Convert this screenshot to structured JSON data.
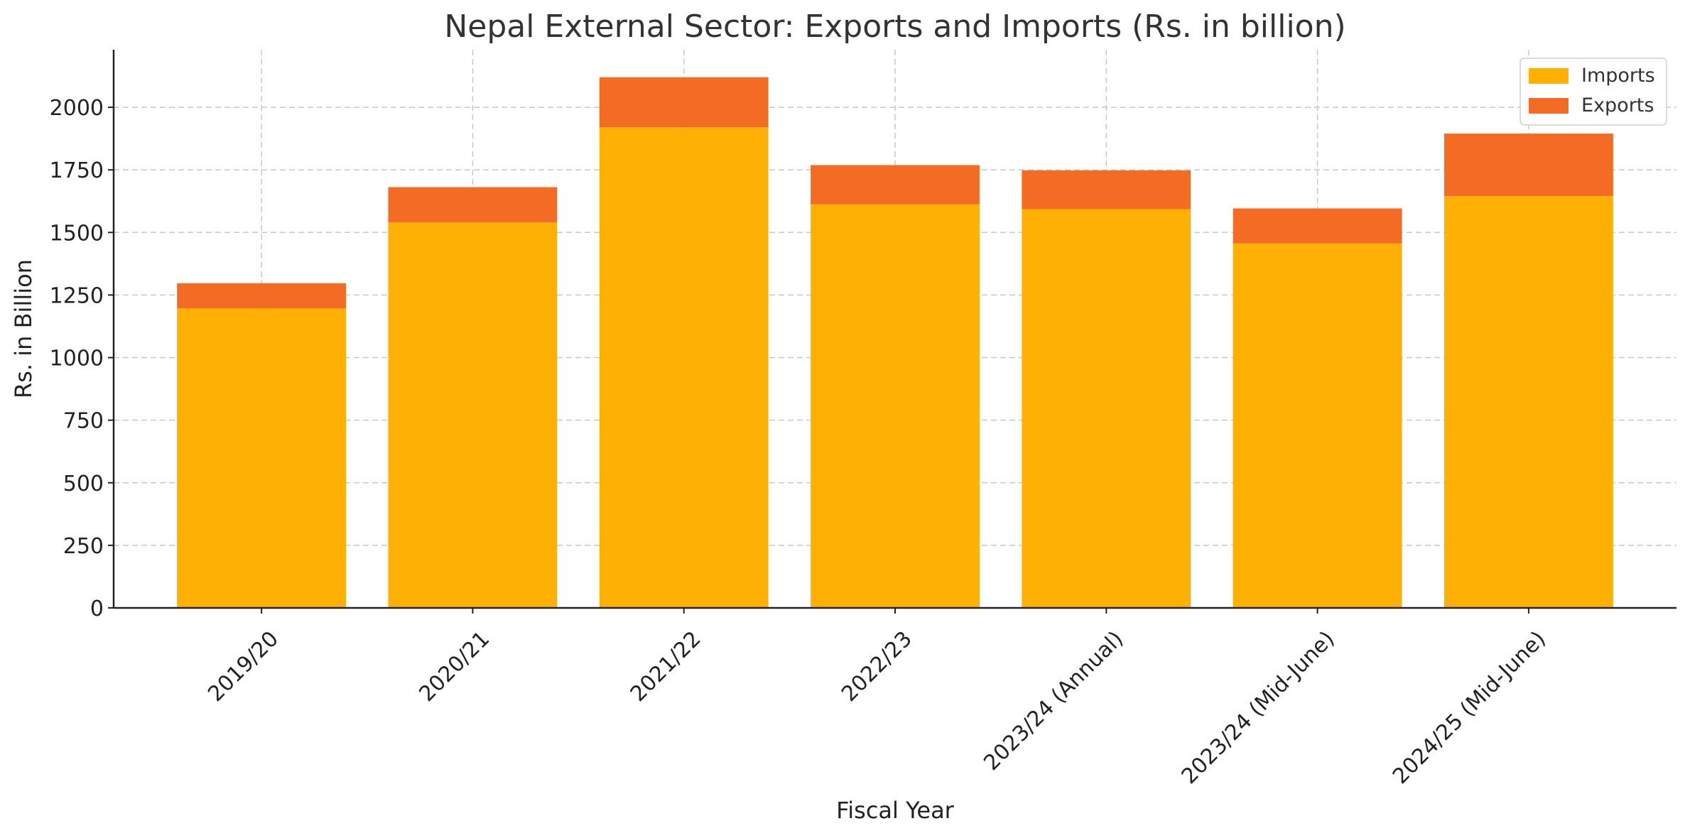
{
  "chart_data": {
    "type": "bar",
    "stacked": true,
    "title": "Nepal External Sector: Exports and Imports (Rs. in billion)",
    "xlabel": "Fiscal Year",
    "ylabel": "Rs. in Billion",
    "ylim": [
      0,
      2230
    ],
    "yticks": [
      0,
      250,
      500,
      750,
      1000,
      1250,
      1500,
      1750,
      2000
    ],
    "grid": true,
    "legend_position": "top-right",
    "categories": [
      "2019/20",
      "2020/21",
      "2021/22",
      "2022/23",
      "2023/24 (Annual)",
      "2023/24 (Mid-June)",
      "2024/25 (Mid-June)"
    ],
    "series": [
      {
        "name": "Imports",
        "color": "#FFB005",
        "values": [
          1197,
          1540,
          1920,
          1612,
          1593,
          1456,
          1645
        ]
      },
      {
        "name": "Exports",
        "color": "#F46B23",
        "values": [
          100,
          141,
          200,
          157,
          155,
          140,
          250
        ]
      }
    ]
  }
}
